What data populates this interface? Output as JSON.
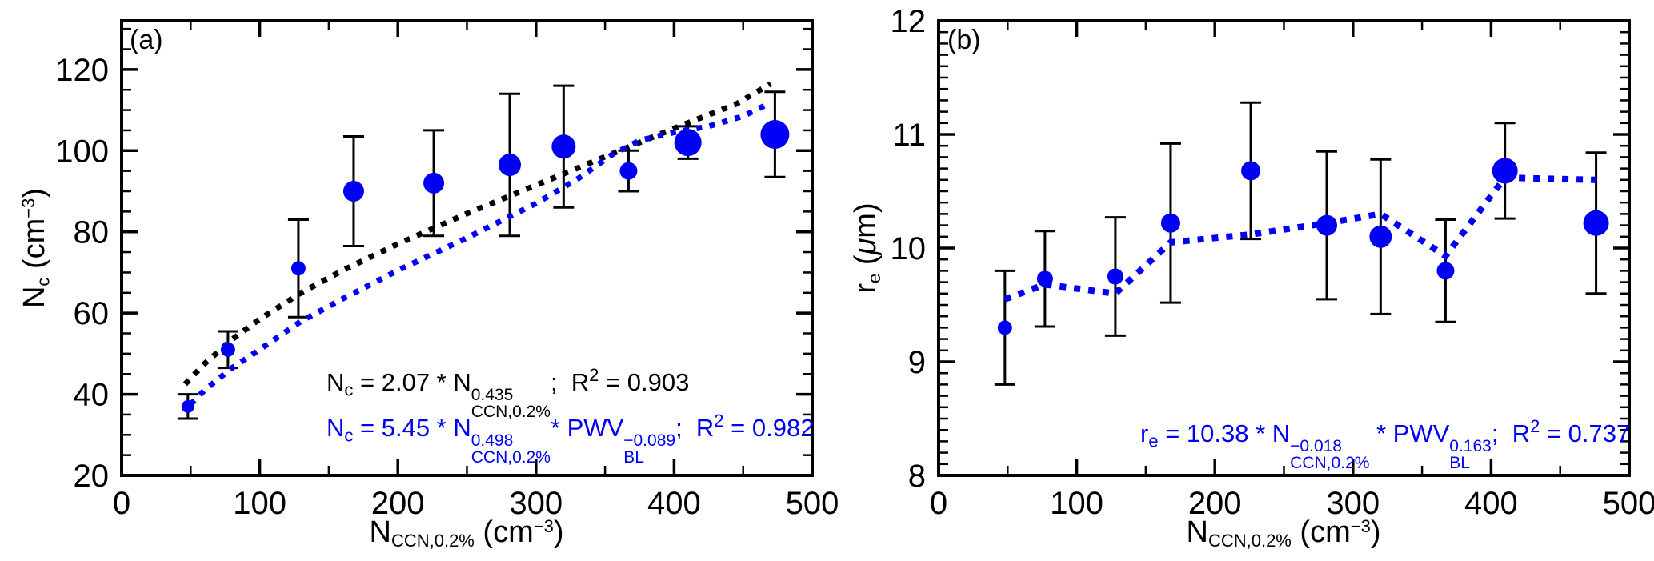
{
  "figure_title": "",
  "chart_data": [
    {
      "type": "scatter",
      "panel_label": "(a)",
      "xlabel": "N_CCN,0.2% (cm^-3)",
      "ylabel": "N_c (cm^-3)",
      "xlabel_rich": [
        [
          "n",
          "N"
        ],
        [
          "sub",
          "CCN,0.2%"
        ],
        [
          "n",
          " (cm"
        ],
        [
          "sup",
          "−3"
        ],
        [
          "n",
          ")"
        ]
      ],
      "ylabel_rich": [
        [
          "n",
          "N"
        ],
        [
          "sub",
          "c"
        ],
        [
          "n",
          " (cm"
        ],
        [
          "sup",
          "−3"
        ],
        [
          "n",
          ")"
        ]
      ],
      "xlim": [
        0,
        500
      ],
      "ylim": [
        20,
        132
      ],
      "x_major_ticks": [
        0,
        100,
        200,
        300,
        400,
        500
      ],
      "x_minor_step": 50,
      "y_major_ticks": [
        20,
        40,
        60,
        80,
        100,
        120
      ],
      "y_minor_step": 5,
      "grid": false,
      "legend": "none",
      "series": [
        {
          "name": "binned-observations",
          "kind": "scatter-errorbar",
          "color": "#0000f5",
          "x": [
            48,
            77,
            128,
            168,
            226,
            281,
            320,
            367,
            410,
            473
          ],
          "y": [
            37,
            51,
            71,
            90,
            92,
            96.5,
            101,
            95,
            102,
            104
          ],
          "yerr": [
            3,
            4.5,
            12,
            13.5,
            13,
            17.5,
            15,
            5,
            4,
            10.5
          ],
          "marker_radius": [
            8,
            9,
            9,
            13,
            13,
            14,
            15,
            11,
            17,
            18
          ]
        },
        {
          "name": "fit-ccn-only",
          "kind": "dotted-line",
          "color": "#000000",
          "points": [
            [
              46,
              42.5
            ],
            [
              60,
              47.5
            ],
            [
              80,
              53.5
            ],
            [
              100,
              58.5
            ],
            [
              130,
              65
            ],
            [
              160,
              70.5
            ],
            [
              200,
              77
            ],
            [
              250,
              84.5
            ],
            [
              300,
              91.5
            ],
            [
              350,
              98.5
            ],
            [
              400,
              105.5
            ],
            [
              445,
              111.5
            ],
            [
              470,
              116.5
            ]
          ]
        },
        {
          "name": "fit-ccn-pwv",
          "kind": "dotted-line",
          "color": "#0000f5",
          "points": [
            [
              50,
              37.5
            ],
            [
              60,
              41
            ],
            [
              80,
              46.5
            ],
            [
              100,
              51
            ],
            [
              130,
              58
            ],
            [
              160,
              63.5
            ],
            [
              200,
              70.5
            ],
            [
              250,
              78.5
            ],
            [
              300,
              87
            ],
            [
              330,
              93
            ],
            [
              355,
              99
            ],
            [
              375,
              102.5
            ],
            [
              400,
              104.5
            ],
            [
              425,
              106
            ],
            [
              450,
              108.5
            ],
            [
              468,
              111.5
            ]
          ]
        }
      ],
      "equations": [
        {
          "color": "#000000",
          "rich": [
            [
              "n",
              "N"
            ],
            [
              "sub",
              "c"
            ],
            [
              "n",
              " = 2.07 * "
            ],
            [
              "n",
              "N"
            ],
            [
              "stk",
              "0.435",
              "CCN,0.2%"
            ],
            [
              "n",
              ";  R"
            ],
            [
              "sup",
              "2"
            ],
            [
              "n",
              " = 0.903"
            ]
          ]
        },
        {
          "color": "#0000f5",
          "rich": [
            [
              "n",
              "N"
            ],
            [
              "sub",
              "c"
            ],
            [
              "n",
              " = 5.45 * "
            ],
            [
              "n",
              "N"
            ],
            [
              "stk",
              "0.498",
              "CCN,0.2%"
            ],
            [
              "n",
              "* PWV"
            ],
            [
              "stk",
              "−0.089",
              "BL"
            ],
            [
              "n",
              ";  R"
            ],
            [
              "sup",
              "2"
            ],
            [
              "n",
              " = 0.982"
            ]
          ]
        }
      ]
    },
    {
      "type": "scatter",
      "panel_label": "(b)",
      "xlabel": "N_CCN,0.2% (cm^-3)",
      "ylabel": "r_e (um)",
      "xlabel_rich": [
        [
          "n",
          "N"
        ],
        [
          "sub",
          "CCN,0.2%"
        ],
        [
          "n",
          " (cm"
        ],
        [
          "sup",
          "−3"
        ],
        [
          "n",
          ")"
        ]
      ],
      "ylabel_rich": [
        [
          "n",
          "r"
        ],
        [
          "sub",
          "e"
        ],
        [
          "n",
          " ("
        ],
        [
          "i",
          "μ"
        ],
        [
          "n",
          "m)"
        ]
      ],
      "xlim": [
        0,
        500
      ],
      "ylim": [
        8,
        12
      ],
      "x_major_ticks": [
        0,
        100,
        200,
        300,
        400,
        500
      ],
      "x_minor_step": 50,
      "y_major_ticks": [
        8,
        9,
        10,
        11,
        12
      ],
      "y_minor_step": 0.1,
      "grid": false,
      "legend": "none",
      "series": [
        {
          "name": "binned-observations",
          "kind": "scatter-errorbar",
          "color": "#0000f5",
          "x": [
            48,
            77,
            128,
            168,
            226,
            281,
            320,
            367,
            410,
            476
          ],
          "y": [
            9.3,
            9.73,
            9.75,
            10.22,
            10.68,
            10.2,
            10.1,
            9.8,
            10.68,
            10.22
          ],
          "yerr": [
            0.5,
            0.42,
            0.52,
            0.7,
            0.6,
            0.65,
            0.68,
            0.45,
            0.42,
            0.62
          ],
          "marker_radius": [
            9,
            10,
            10,
            12,
            12,
            13,
            14,
            11,
            16,
            16
          ]
        },
        {
          "name": "fit-ccn-pwv",
          "kind": "dotted-line",
          "color": "#0000f5",
          "points": [
            [
              48,
              9.55
            ],
            [
              77,
              9.68
            ],
            [
              128,
              9.6
            ],
            [
              168,
              10.05
            ],
            [
              226,
              10.12
            ],
            [
              281,
              10.22
            ],
            [
              320,
              10.3
            ],
            [
              367,
              9.93
            ],
            [
              410,
              10.62
            ],
            [
              476,
              10.6
            ]
          ]
        }
      ],
      "equations": [
        {
          "color": "#0000f5",
          "rich": [
            [
              "n",
              "r"
            ],
            [
              "sub",
              "e"
            ],
            [
              "n",
              " = 10.38 * "
            ],
            [
              "n",
              "N"
            ],
            [
              "stk",
              "−0.018",
              "CCN,0.2%"
            ],
            [
              "n",
              " * PWV"
            ],
            [
              "stk",
              "0.163",
              "BL"
            ],
            [
              "n",
              ";  R"
            ],
            [
              "sup",
              "2"
            ],
            [
              "n",
              " = 0.737"
            ]
          ]
        }
      ]
    }
  ]
}
